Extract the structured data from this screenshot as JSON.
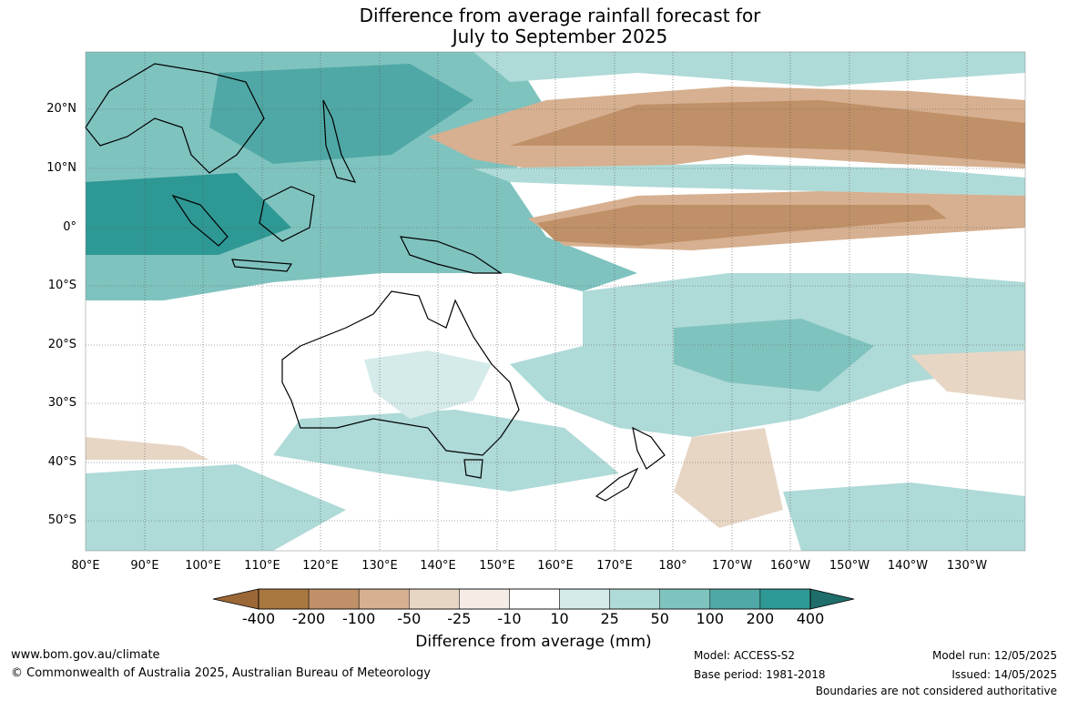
{
  "title": {
    "line1": "Difference from average rainfall forecast for",
    "line2": "July to September 2025"
  },
  "map": {
    "lat_labels": [
      "20°N",
      "10°N",
      "0°",
      "10°S",
      "20°S",
      "30°S",
      "40°S",
      "50°S"
    ],
    "lon_labels": [
      "80°E",
      "90°E",
      "100°E",
      "110°E",
      "120°E",
      "130°E",
      "140°E",
      "150°E",
      "160°E",
      "170°E",
      "180°",
      "170°W",
      "160°W",
      "150°W",
      "140°W",
      "130°W"
    ]
  },
  "legend": {
    "ticks": [
      "-400",
      "-200",
      "-100",
      "-50",
      "-25",
      "-10",
      "10",
      "25",
      "50",
      "100",
      "200",
      "400"
    ],
    "colors": [
      "#9c6737",
      "#a97840",
      "#c09068",
      "#d6b090",
      "#e8d6c5",
      "#f5ece6",
      "#ffffff",
      "#d5ebe9",
      "#aedad7",
      "#7fc3bf",
      "#4fa8a5",
      "#2e9894",
      "#1f6e6b"
    ],
    "label": "Difference from average (mm)"
  },
  "footer": {
    "website": "www.bom.gov.au/climate",
    "copyright": "© Commonwealth of Australia 2025, Australian Bureau of Meteorology",
    "model": "Model: ACCESS-S2",
    "base_period": "Base period: 1981-2018",
    "model_run": "Model run: 12/05/2025",
    "issued": "Issued: 14/05/2025",
    "disclaimer": "Boundaries are not considered authoritative"
  }
}
